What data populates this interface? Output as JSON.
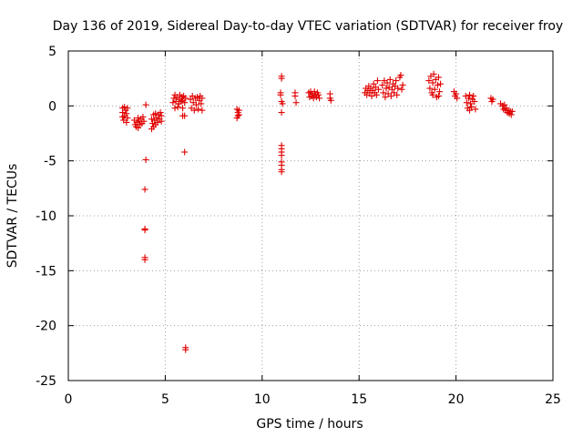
{
  "chart_data": {
    "type": "scatter",
    "title": "Day 136 of 2019, Sidereal Day-to-day VTEC variation (SDTVAR) for receiver froy",
    "xlabel": "GPS time / hours",
    "ylabel": "SDTVAR / TECUs",
    "xlim": [
      0,
      25
    ],
    "ylim": [
      -25,
      5
    ],
    "xticks": [
      0,
      5,
      10,
      15,
      20,
      25
    ],
    "yticks": [
      5,
      0,
      -5,
      -10,
      -15,
      -20,
      -25
    ],
    "xtick_labels": [
      "0",
      "5",
      "10",
      "15",
      "20",
      "25"
    ],
    "ytick_labels": [
      "5",
      "0",
      "-5",
      "-10",
      "-15",
      "-20",
      "-25"
    ],
    "grid": true,
    "marker": "+",
    "marker_color": "#e00000",
    "series": [
      {
        "name": "SDTVAR",
        "points": [
          [
            2.8,
            -0.2
          ],
          [
            2.8,
            -0.6
          ],
          [
            2.8,
            -1.0
          ],
          [
            2.85,
            -1.3
          ],
          [
            2.9,
            -0.1
          ],
          [
            2.9,
            -0.9
          ],
          [
            2.95,
            -0.4
          ],
          [
            3.0,
            -0.7
          ],
          [
            3.0,
            -1.5
          ],
          [
            3.05,
            -0.2
          ],
          [
            3.05,
            -1.1
          ],
          [
            3.4,
            -1.3
          ],
          [
            3.45,
            -1.7
          ],
          [
            3.5,
            -1.9
          ],
          [
            3.55,
            -1.5
          ],
          [
            3.6,
            -1.1
          ],
          [
            3.6,
            -2.0
          ],
          [
            3.65,
            -1.4
          ],
          [
            3.7,
            -1.7
          ],
          [
            3.75,
            -1.2
          ],
          [
            3.8,
            -1.6
          ],
          [
            3.85,
            -1.0
          ],
          [
            3.9,
            -1.4
          ],
          [
            4.0,
            0.1
          ],
          [
            4.0,
            -4.9
          ],
          [
            3.95,
            -7.6
          ],
          [
            3.95,
            -11.2
          ],
          [
            3.95,
            -11.3
          ],
          [
            3.95,
            -13.8
          ],
          [
            3.95,
            -14.0
          ],
          [
            4.3,
            -1.2
          ],
          [
            4.3,
            -2.1
          ],
          [
            4.35,
            -1.6
          ],
          [
            4.4,
            -0.8
          ],
          [
            4.4,
            -1.9
          ],
          [
            4.45,
            -1.3
          ],
          [
            4.5,
            -0.7
          ],
          [
            4.5,
            -1.7
          ],
          [
            4.55,
            -1.1
          ],
          [
            4.6,
            -1.5
          ],
          [
            4.65,
            -0.8
          ],
          [
            4.7,
            -1.2
          ],
          [
            4.75,
            -0.6
          ],
          [
            4.8,
            -1.4
          ],
          [
            4.8,
            -0.9
          ],
          [
            5.4,
            0.3
          ],
          [
            5.45,
            0.7
          ],
          [
            5.5,
            -0.2
          ],
          [
            5.5,
            1.0
          ],
          [
            5.55,
            0.4
          ],
          [
            5.6,
            0.8
          ],
          [
            5.65,
            -0.1
          ],
          [
            5.7,
            0.6
          ],
          [
            5.7,
            0.2
          ],
          [
            5.75,
            1.0
          ],
          [
            5.8,
            0.4
          ],
          [
            5.85,
            0.8
          ],
          [
            5.9,
            -0.2
          ],
          [
            5.9,
            0.5
          ],
          [
            5.95,
            0.9
          ],
          [
            6.0,
            0.3
          ],
          [
            6.05,
            0.7
          ],
          [
            6.0,
            -0.9
          ],
          [
            5.9,
            -0.9
          ],
          [
            6.0,
            -4.2
          ],
          [
            6.05,
            -22.0
          ],
          [
            6.05,
            -22.2
          ],
          [
            6.3,
            0.6
          ],
          [
            6.35,
            -0.2
          ],
          [
            6.4,
            0.9
          ],
          [
            6.45,
            0.3
          ],
          [
            6.5,
            -0.4
          ],
          [
            6.55,
            0.7
          ],
          [
            6.6,
            0.1
          ],
          [
            6.65,
            0.8
          ],
          [
            6.7,
            -0.3
          ],
          [
            6.75,
            0.5
          ],
          [
            6.8,
            0.9
          ],
          [
            6.85,
            0.2
          ],
          [
            6.9,
            -0.4
          ],
          [
            6.9,
            0.7
          ],
          [
            8.7,
            -0.3
          ],
          [
            8.7,
            -1.1
          ],
          [
            8.75,
            -0.6
          ],
          [
            8.75,
            -0.9
          ],
          [
            8.8,
            -0.4
          ],
          [
            8.8,
            -0.8
          ],
          [
            11.0,
            2.7
          ],
          [
            11.0,
            2.5
          ],
          [
            10.95,
            1.2
          ],
          [
            10.95,
            1.0
          ],
          [
            11.0,
            0.4
          ],
          [
            11.05,
            0.2
          ],
          [
            11.0,
            -0.6
          ],
          [
            11.0,
            -3.6
          ],
          [
            11.0,
            -3.9
          ],
          [
            11.0,
            -4.2
          ],
          [
            11.0,
            -4.5
          ],
          [
            11.0,
            -5.1
          ],
          [
            11.0,
            -5.4
          ],
          [
            11.0,
            -5.8
          ],
          [
            11.0,
            -6.0
          ],
          [
            11.7,
            1.2
          ],
          [
            11.7,
            0.9
          ],
          [
            11.75,
            0.3
          ],
          [
            12.4,
            1.2
          ],
          [
            12.45,
            0.8
          ],
          [
            12.5,
            1.3
          ],
          [
            12.55,
            0.9
          ],
          [
            12.6,
            1.1
          ],
          [
            12.65,
            0.7
          ],
          [
            12.7,
            1.3
          ],
          [
            12.75,
            1.0
          ],
          [
            12.8,
            0.8
          ],
          [
            12.85,
            1.2
          ],
          [
            12.9,
            1.0
          ],
          [
            12.95,
            0.7
          ],
          [
            13.5,
            1.1
          ],
          [
            13.5,
            0.7
          ],
          [
            13.55,
            0.5
          ],
          [
            15.3,
            1.2
          ],
          [
            15.35,
            1.6
          ],
          [
            15.4,
            1.0
          ],
          [
            15.45,
            1.4
          ],
          [
            15.5,
            1.8
          ],
          [
            15.55,
            1.2
          ],
          [
            15.6,
            1.6
          ],
          [
            15.65,
            0.9
          ],
          [
            15.7,
            1.4
          ],
          [
            15.75,
            2.0
          ],
          [
            15.8,
            1.2
          ],
          [
            15.85,
            1.7
          ],
          [
            15.9,
            1.0
          ],
          [
            15.95,
            2.3
          ],
          [
            16.0,
            1.5
          ],
          [
            16.2,
            1.9
          ],
          [
            16.25,
            1.2
          ],
          [
            16.3,
            2.3
          ],
          [
            16.35,
            0.8
          ],
          [
            16.4,
            1.6
          ],
          [
            16.45,
            2.1
          ],
          [
            16.5,
            1.1
          ],
          [
            16.55,
            1.7
          ],
          [
            16.6,
            2.4
          ],
          [
            16.65,
            0.9
          ],
          [
            16.7,
            1.5
          ],
          [
            16.75,
            2.0
          ],
          [
            16.8,
            1.2
          ],
          [
            16.85,
            1.8
          ],
          [
            16.9,
            2.3
          ],
          [
            16.95,
            1.0
          ],
          [
            17.0,
            1.6
          ],
          [
            17.1,
            2.6
          ],
          [
            17.15,
            2.8
          ],
          [
            17.2,
            1.5
          ],
          [
            17.25,
            1.9
          ],
          [
            18.6,
            2.3
          ],
          [
            18.65,
            1.6
          ],
          [
            18.7,
            2.7
          ],
          [
            18.75,
            1.2
          ],
          [
            18.8,
            2.1
          ],
          [
            18.85,
            2.9
          ],
          [
            18.9,
            1.5
          ],
          [
            18.95,
            2.4
          ],
          [
            19.0,
            0.8
          ],
          [
            18.8,
            1.0
          ],
          [
            19.05,
            1.9
          ],
          [
            19.1,
            2.6
          ],
          [
            19.15,
            1.3
          ],
          [
            19.2,
            2.0
          ],
          [
            19.1,
            0.9
          ],
          [
            19.9,
            1.3
          ],
          [
            19.95,
            0.9
          ],
          [
            20.0,
            1.1
          ],
          [
            20.05,
            0.7
          ],
          [
            20.5,
            0.9
          ],
          [
            20.55,
            0.3
          ],
          [
            20.6,
            -0.2
          ],
          [
            20.65,
            0.7
          ],
          [
            20.7,
            1.0
          ],
          [
            20.75,
            0.2
          ],
          [
            20.8,
            -0.1
          ],
          [
            20.85,
            0.6
          ],
          [
            20.9,
            0.9
          ],
          [
            20.95,
            0.4
          ],
          [
            21.0,
            -0.3
          ],
          [
            20.7,
            -0.4
          ],
          [
            21.8,
            0.7
          ],
          [
            21.85,
            0.4
          ],
          [
            21.9,
            0.6
          ],
          [
            22.3,
            0.2
          ],
          [
            22.4,
            0.0
          ],
          [
            22.45,
            -0.3
          ],
          [
            22.5,
            0.1
          ],
          [
            22.55,
            -0.4
          ],
          [
            22.6,
            -0.2
          ],
          [
            22.65,
            -0.6
          ],
          [
            22.7,
            -0.4
          ],
          [
            22.75,
            -0.7
          ],
          [
            22.8,
            -0.5
          ],
          [
            22.85,
            -0.8
          ],
          [
            22.9,
            -0.5
          ]
        ]
      }
    ]
  }
}
